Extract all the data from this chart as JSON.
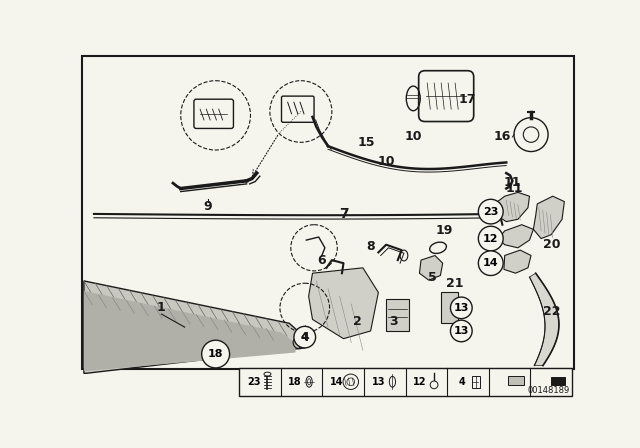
{
  "bg_color": "#f5f5ed",
  "lc": "#1a1a1a",
  "diagram_id": "00148189",
  "part_label_fontsize": 9,
  "small_label_fontsize": 7.5
}
